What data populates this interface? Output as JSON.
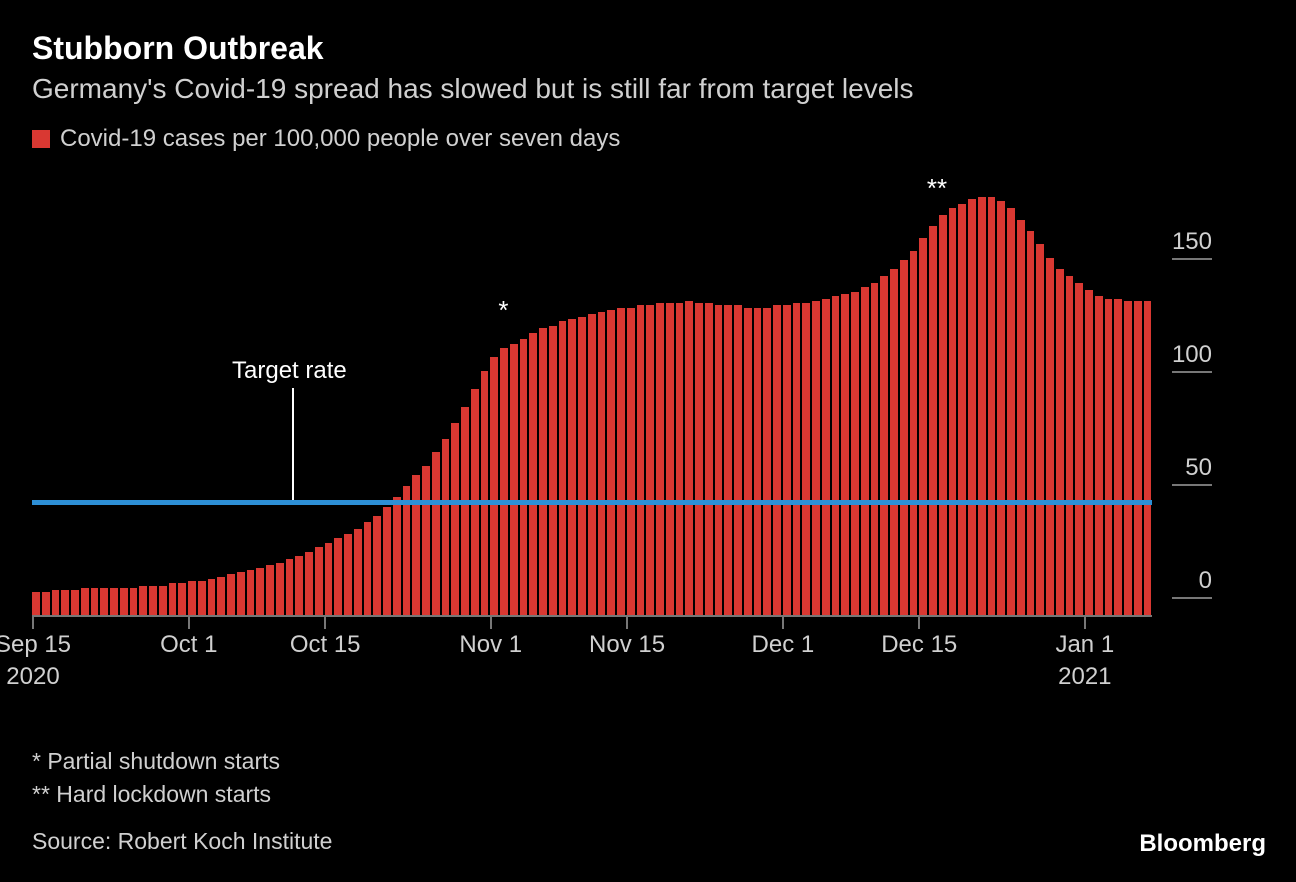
{
  "title": "Stubborn Outbreak",
  "subtitle": "Germany's Covid-19 spread has slowed but is still far from target levels",
  "legend": {
    "swatch_color": "#d93832",
    "label": "Covid-19 cases per 100,000 people over seven days"
  },
  "chart": {
    "type": "bar",
    "background_color": "#000000",
    "bar_color": "#d93832",
    "target_line_color": "#2d8fd6",
    "target_line_value": 50,
    "target_label": "Target rate",
    "ylim": [
      0,
      200
    ],
    "y_ticks": [
      0,
      50,
      100,
      150
    ],
    "y_tick_color": "#777777",
    "y_label_color": "#d0d0d0",
    "x_ticks": [
      {
        "label": "Sep 15",
        "sublabel": "2020",
        "index": 0
      },
      {
        "label": "Oct 1",
        "index": 16
      },
      {
        "label": "Oct 15",
        "index": 30
      },
      {
        "label": "Nov 1",
        "index": 47
      },
      {
        "label": "Nov 15",
        "index": 61
      },
      {
        "label": "Dec 1",
        "index": 77
      },
      {
        "label": "Dec 15",
        "index": 91
      },
      {
        "label": "Jan 1",
        "sublabel": "2021",
        "index": 108
      }
    ],
    "values": [
      10,
      10,
      11,
      11,
      11,
      12,
      12,
      12,
      12,
      12,
      12,
      13,
      13,
      13,
      14,
      14,
      15,
      15,
      16,
      17,
      18,
      19,
      20,
      21,
      22,
      23,
      25,
      26,
      28,
      30,
      32,
      34,
      36,
      38,
      41,
      44,
      48,
      52,
      57,
      62,
      66,
      72,
      78,
      85,
      92,
      100,
      108,
      114,
      118,
      120,
      122,
      125,
      127,
      128,
      130,
      131,
      132,
      133,
      134,
      135,
      136,
      136,
      137,
      137,
      138,
      138,
      138,
      139,
      138,
      138,
      137,
      137,
      137,
      136,
      136,
      136,
      137,
      137,
      138,
      138,
      139,
      140,
      141,
      142,
      143,
      145,
      147,
      150,
      153,
      157,
      161,
      167,
      172,
      177,
      180,
      182,
      184,
      185,
      185,
      183,
      180,
      175,
      170,
      164,
      158,
      153,
      150,
      147,
      144,
      141,
      140,
      140,
      139,
      139,
      139
    ],
    "annotations": [
      {
        "symbol": "*",
        "index": 48,
        "y": 128
      },
      {
        "symbol": "**",
        "index": 92,
        "y": 182
      }
    ]
  },
  "footnotes": [
    "* Partial shutdown starts",
    "** Hard lockdown starts"
  ],
  "source": "Source: Robert Koch Institute",
  "brand": "Bloomberg"
}
